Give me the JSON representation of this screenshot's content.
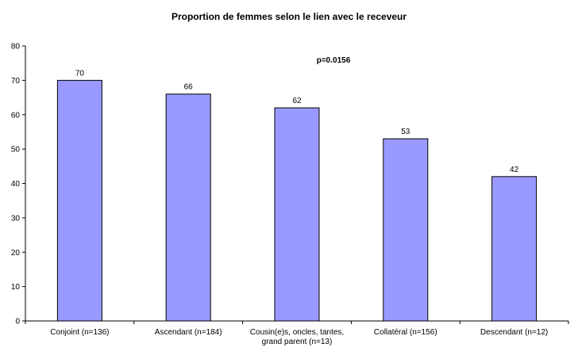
{
  "chart_data": {
    "type": "bar",
    "title": "Proportion de femmes selon le lien avec le receveur",
    "annotation": "p=0.0156",
    "categories": [
      [
        "Conjoint (n=136)"
      ],
      [
        "Ascendant (n=184)"
      ],
      [
        "Cousin(e)s, oncles, tantes,",
        "grand parent (n=13)"
      ],
      [
        "Collatéral (n=156)"
      ],
      [
        "Descendant (n=12)"
      ]
    ],
    "values": [
      70,
      66,
      62,
      53,
      42
    ],
    "data_labels": [
      "70",
      "66",
      "62",
      "53",
      "42"
    ],
    "ylim": [
      0,
      80
    ],
    "yticks": [
      0,
      10,
      20,
      30,
      40,
      50,
      60,
      70,
      80
    ],
    "xlabel": "",
    "ylabel": "",
    "grid": false,
    "bar_color": "#9999ff",
    "bar_edge_color": "#000000"
  }
}
